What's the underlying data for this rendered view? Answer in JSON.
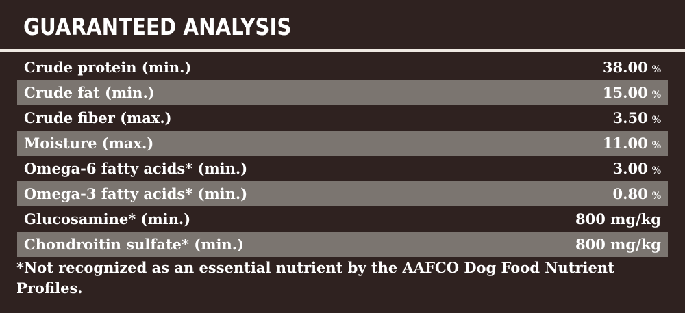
{
  "title": "GUARANTEED ANALYSIS",
  "rows": [
    {
      "label": "Crude protein (min.)",
      "value": "38.00",
      "unit": "%"
    },
    {
      "label": "Crude fat (min.)",
      "value": "15.00",
      "unit": "%"
    },
    {
      "label": "Crude fiber (max.)",
      "value": "3.50",
      "unit": "%"
    },
    {
      "label": "Moisture (max.)",
      "value": "11.00",
      "unit": "%"
    },
    {
      "label": "Omega-6 fatty acids* (min.)",
      "value": "3.00",
      "unit": "%"
    },
    {
      "label": "Omega-3 fatty acids* (min.)",
      "value": "0.80",
      "unit": "%"
    },
    {
      "label": "Glucosamine* (min.)",
      "value": "800 mg/kg",
      "unit": ""
    },
    {
      "label": "Chondroitin sulfate* (min.)",
      "value": "800 mg/kg",
      "unit": ""
    }
  ],
  "footnote": "*Not recognized as an essential nutrient by the AAFCO Dog Food Nutrient Profiles.",
  "colors": {
    "background": "#2f2220",
    "row_shade": "#7b7570",
    "divider": "#efe9e2",
    "text": "#ffffff"
  }
}
